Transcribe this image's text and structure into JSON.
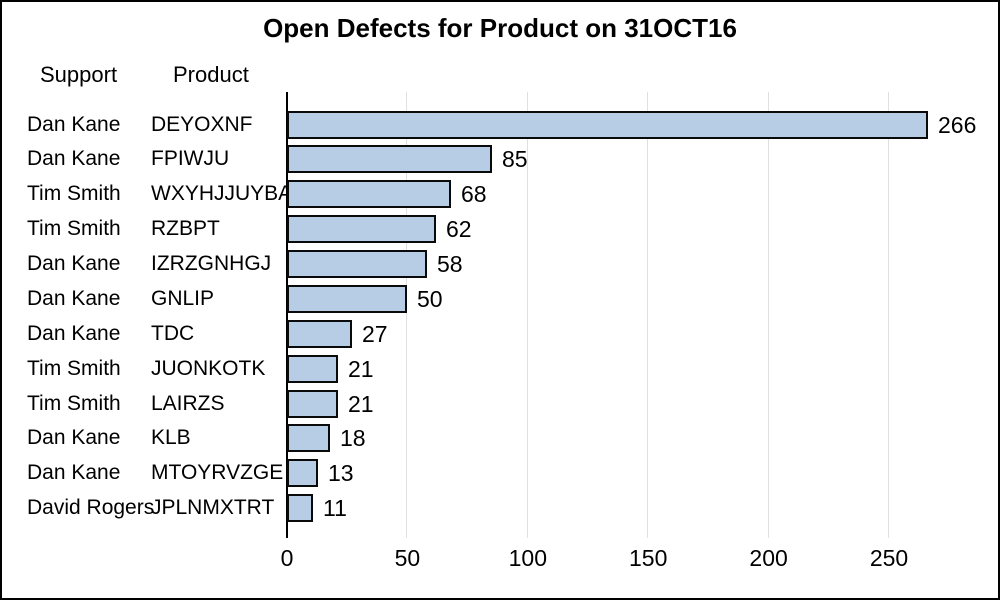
{
  "chart_data": {
    "type": "bar",
    "orientation": "horizontal",
    "title": "Open Defects for Product on 31OCT16",
    "column_headers": {
      "support": "Support",
      "product": "Product"
    },
    "rows": [
      {
        "support": "Dan Kane",
        "product": "DEYOXNF",
        "value": 266
      },
      {
        "support": "Dan Kane",
        "product": "FPIWJU",
        "value": 85
      },
      {
        "support": "Tim Smith",
        "product": "WXYHJJUYBA",
        "value": 68
      },
      {
        "support": "Tim Smith",
        "product": "RZBPT",
        "value": 62
      },
      {
        "support": "Dan Kane",
        "product": "IZRZGNHGJ",
        "value": 58
      },
      {
        "support": "Dan Kane",
        "product": "GNLIP",
        "value": 50
      },
      {
        "support": "Dan Kane",
        "product": "TDC",
        "value": 27
      },
      {
        "support": "Tim Smith",
        "product": "JUONKOTK",
        "value": 21
      },
      {
        "support": "Tim Smith",
        "product": "LAIRZS",
        "value": 21
      },
      {
        "support": "Dan Kane",
        "product": "KLB",
        "value": 18
      },
      {
        "support": "Dan Kane",
        "product": "MTOYRVZGE",
        "value": 13
      },
      {
        "support": "David Rogers",
        "product": "JPLNMXTRT",
        "value": 11
      }
    ],
    "xticks": [
      0,
      50,
      100,
      150,
      200,
      250
    ],
    "xlim": [
      0,
      295
    ],
    "grid": true,
    "value_labels_shown": true,
    "colors": {
      "bar_fill": "#b7cde5",
      "bar_border": "#0a0a0a",
      "gridline": "#e0e0e0",
      "axis": "#000000",
      "text": "#000000",
      "background": "#ffffff",
      "frame_border": "#000000"
    }
  }
}
